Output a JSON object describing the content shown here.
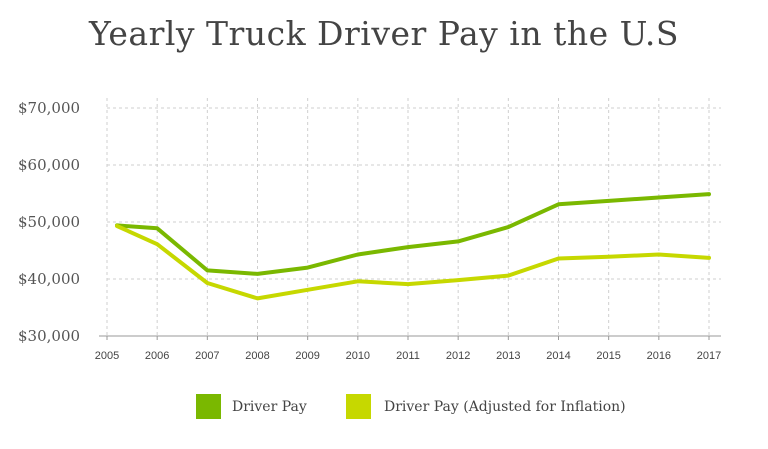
{
  "chart_data": {
    "type": "line",
    "title": "Yearly Truck Driver Pay in the U.S",
    "xlabel": "",
    "ylabel": "",
    "x": [
      "2005",
      "2006",
      "2007",
      "2008",
      "2009",
      "2010",
      "2011",
      "2012",
      "2013",
      "2014",
      "2015",
      "2016",
      "2017"
    ],
    "ylim": [
      30000,
      70000
    ],
    "yticks": [
      {
        "value": 70000,
        "label": "$70,000"
      },
      {
        "value": 60000,
        "label": "$60,000"
      },
      {
        "value": 50000,
        "label": "$50,000"
      },
      {
        "value": 40000,
        "label": "$40,000"
      },
      {
        "value": 30000,
        "label": "$30,000"
      }
    ],
    "grid": "dashed",
    "legend_position": "bottom",
    "series": [
      {
        "name": "Driver Pay",
        "color": "#7ab800",
        "points": [
          {
            "x": "2005.2",
            "y": 49400
          },
          {
            "x": "2006",
            "y": 48900
          },
          {
            "x": "2007",
            "y": 41500
          },
          {
            "x": "2008",
            "y": 40900
          },
          {
            "x": "2009",
            "y": 42000
          },
          {
            "x": "2010",
            "y": 44300
          },
          {
            "x": "2011",
            "y": 45600
          },
          {
            "x": "2012",
            "y": 46600
          },
          {
            "x": "2013",
            "y": 49100
          },
          {
            "x": "2014",
            "y": 53100
          },
          {
            "x": "2015",
            "y": 53700
          },
          {
            "x": "2016",
            "y": 54300
          },
          {
            "x": "2017",
            "y": 54900
          }
        ]
      },
      {
        "name": "Driver Pay (Adjusted for Inflation)",
        "color": "#c6d800",
        "points": [
          {
            "x": "2005.2",
            "y": 49300
          },
          {
            "x": "2006",
            "y": 46100
          },
          {
            "x": "2007",
            "y": 39300
          },
          {
            "x": "2008",
            "y": 36600
          },
          {
            "x": "2009",
            "y": 38100
          },
          {
            "x": "2010",
            "y": 39600
          },
          {
            "x": "2011",
            "y": 39100
          },
          {
            "x": "2012",
            "y": 39800
          },
          {
            "x": "2013",
            "y": 40600
          },
          {
            "x": "2014",
            "y": 43600
          },
          {
            "x": "2015",
            "y": 43900
          },
          {
            "x": "2016",
            "y": 44300
          },
          {
            "x": "2017",
            "y": 43700
          }
        ]
      }
    ]
  }
}
